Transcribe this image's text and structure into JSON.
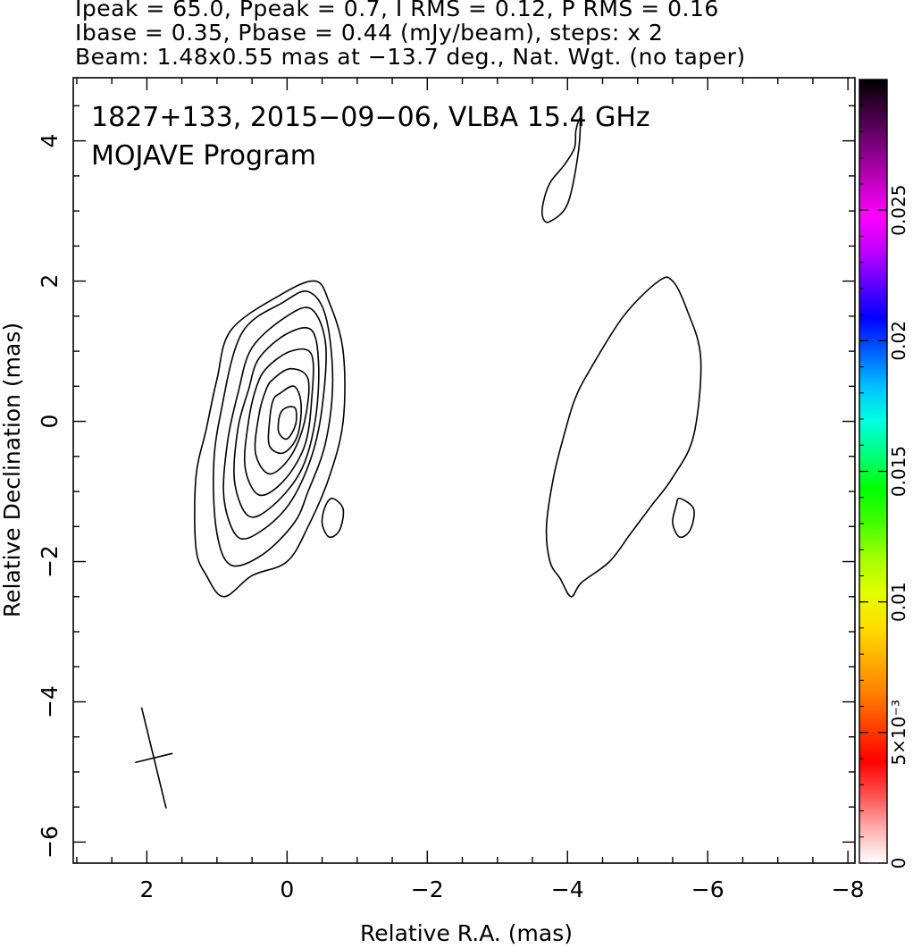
{
  "header": {
    "line1": "Ipeak = 65.0, Ppeak = 0.7, I RMS = 0.12, P RMS = 0.16",
    "line2": "Ibase = 0.35, Pbase = 0.44 (mJy/beam), steps: x 2",
    "line3": "Beam: 1.48x0.55 mas at −13.7 deg., Nat. Wgt. (no taper)"
  },
  "chart_data": {
    "type": "contour",
    "annotation": {
      "line1": "1827+133, 2015−09−06, VLBA 15.4 GHz",
      "line2": "MOJAVE Program"
    },
    "xlabel": "Relative R.A. (mas)",
    "ylabel": "Relative Declination (mas)",
    "xlim": [
      3.05,
      -8.1
    ],
    "ylim": [
      -6.3,
      4.9
    ],
    "x_ticks": [
      2,
      0,
      -2,
      -4,
      -6,
      -8
    ],
    "x_tick_labels": [
      "2",
      "0",
      "−2",
      "−4",
      "−6",
      "−8"
    ],
    "y_ticks": [
      -6,
      -4,
      -2,
      0,
      2,
      4
    ],
    "y_tick_labels": [
      "−6",
      "−4",
      "−2",
      "0",
      "2",
      "4"
    ],
    "colorbar": {
      "range": [
        0,
        0.03
      ],
      "ticks": [
        0,
        0.005,
        0.01,
        0.015,
        0.02,
        0.025
      ],
      "tick_labels": [
        "0",
        "5×10⁻³",
        "0.01",
        "0.015",
        "0.02",
        "0.025"
      ],
      "colors": [
        "#ffffff",
        "#ffb0b0",
        "#ff5050",
        "#ff0000",
        "#ff4000",
        "#ff8000",
        "#ffb000",
        "#ffe000",
        "#e0ff00",
        "#a0ff00",
        "#40ff00",
        "#00ff00",
        "#00ff80",
        "#00ffe0",
        "#00c0ff",
        "#0060ff",
        "#0000ff",
        "#6000ff",
        "#c000ff",
        "#ff00ff",
        "#c000c0",
        "#800080",
        "#400040",
        "#000000"
      ]
    },
    "beam": {
      "major_mas": 1.48,
      "minor_mas": 0.55,
      "pa_deg": -13.7,
      "center": [
        1.9,
        -4.8
      ]
    },
    "stokes_i_contours": {
      "peak_mJy_per_beam": 65.0,
      "base_mJy_per_beam": 0.35,
      "step_factor": 2,
      "core": [
        {
          "level": 1,
          "points": [
            [
              0.8,
              1.3
            ],
            [
              0.1,
              1.8
            ],
            [
              -0.4,
              2.0
            ],
            [
              -0.6,
              1.7
            ],
            [
              -0.8,
              1.0
            ],
            [
              -0.8,
              0.0
            ],
            [
              -0.6,
              -0.8
            ],
            [
              -0.3,
              -1.5
            ],
            [
              0.0,
              -2.0
            ],
            [
              0.5,
              -2.2
            ],
            [
              0.9,
              -2.5
            ],
            [
              1.15,
              -2.2
            ],
            [
              1.3,
              -1.8
            ],
            [
              1.3,
              -0.8
            ],
            [
              1.15,
              -0.1
            ],
            [
              1.0,
              0.6
            ]
          ]
        },
        {
          "level": 2,
          "points": [
            [
              0.65,
              1.25
            ],
            [
              0.05,
              1.7
            ],
            [
              -0.3,
              1.85
            ],
            [
              -0.55,
              1.5
            ],
            [
              -0.65,
              0.6
            ],
            [
              -0.55,
              -0.3
            ],
            [
              -0.3,
              -1.0
            ],
            [
              -0.1,
              -1.45
            ],
            [
              0.35,
              -1.9
            ],
            [
              0.8,
              -2.05
            ],
            [
              1.0,
              -1.6
            ],
            [
              1.05,
              -0.7
            ],
            [
              0.95,
              0.1
            ]
          ]
        },
        {
          "level": 3,
          "points": [
            [
              0.5,
              1.05
            ],
            [
              0.0,
              1.5
            ],
            [
              -0.35,
              1.6
            ],
            [
              -0.55,
              1.1
            ],
            [
              -0.5,
              0.2
            ],
            [
              -0.35,
              -0.5
            ],
            [
              -0.05,
              -1.15
            ],
            [
              0.35,
              -1.55
            ],
            [
              0.7,
              -1.65
            ],
            [
              0.9,
              -1.1
            ],
            [
              0.85,
              -0.3
            ],
            [
              0.7,
              0.4
            ]
          ]
        },
        {
          "level": 4,
          "points": [
            [
              0.4,
              0.9
            ],
            [
              0.0,
              1.25
            ],
            [
              -0.35,
              1.3
            ],
            [
              -0.45,
              0.8
            ],
            [
              -0.4,
              0.0
            ],
            [
              -0.2,
              -0.7
            ],
            [
              0.2,
              -1.2
            ],
            [
              0.55,
              -1.35
            ],
            [
              0.75,
              -0.85
            ],
            [
              0.7,
              -0.1
            ],
            [
              0.55,
              0.45
            ]
          ]
        },
        {
          "level": 5,
          "points": [
            [
              0.3,
              0.75
            ],
            [
              -0.05,
              1.0
            ],
            [
              -0.35,
              0.95
            ],
            [
              -0.35,
              0.3
            ],
            [
              -0.25,
              -0.35
            ],
            [
              0.05,
              -0.85
            ],
            [
              0.4,
              -1.05
            ],
            [
              0.6,
              -0.65
            ],
            [
              0.55,
              0.0
            ],
            [
              0.45,
              0.45
            ]
          ]
        },
        {
          "level": 6,
          "points": [
            [
              0.2,
              0.6
            ],
            [
              -0.05,
              0.75
            ],
            [
              -0.3,
              0.6
            ],
            [
              -0.25,
              0.0
            ],
            [
              -0.05,
              -0.5
            ],
            [
              0.25,
              -0.75
            ],
            [
              0.45,
              -0.45
            ],
            [
              0.4,
              0.1
            ],
            [
              0.3,
              0.45
            ]
          ]
        },
        {
          "level": 7,
          "points": [
            [
              0.1,
              0.4
            ],
            [
              -0.1,
              0.5
            ],
            [
              -0.2,
              0.25
            ],
            [
              -0.15,
              -0.2
            ],
            [
              0.05,
              -0.45
            ],
            [
              0.25,
              -0.35
            ],
            [
              0.25,
              0.0
            ],
            [
              0.2,
              0.3
            ]
          ]
        },
        {
          "level": 8,
          "points": [
            [
              0.0,
              0.2
            ],
            [
              -0.12,
              0.18
            ],
            [
              -0.12,
              -0.05
            ],
            [
              0.0,
              -0.25
            ],
            [
              0.12,
              -0.15
            ],
            [
              0.1,
              0.1
            ]
          ]
        }
      ],
      "core_blob": {
        "level": 1,
        "points": [
          [
            -0.65,
            -1.1
          ],
          [
            -0.8,
            -1.25
          ],
          [
            -0.75,
            -1.55
          ],
          [
            -0.6,
            -1.65
          ],
          [
            -0.5,
            -1.45
          ],
          [
            -0.55,
            -1.2
          ]
        ]
      }
    },
    "polarization_contours": {
      "base_mJy_per_beam": 0.44,
      "step_factor": 2,
      "main": {
        "level": 1,
        "points": [
          [
            -4.3,
            0.7
          ],
          [
            -4.8,
            1.5
          ],
          [
            -5.3,
            2.0
          ],
          [
            -5.5,
            2.0
          ],
          [
            -5.7,
            1.6
          ],
          [
            -5.9,
            0.9
          ],
          [
            -5.8,
            -0.2
          ],
          [
            -5.5,
            -0.8
          ],
          [
            -5.2,
            -1.2
          ],
          [
            -4.9,
            -1.6
          ],
          [
            -4.6,
            -2.0
          ],
          [
            -4.2,
            -2.3
          ],
          [
            -4.05,
            -2.5
          ],
          [
            -3.9,
            -2.25
          ],
          [
            -3.75,
            -2.0
          ],
          [
            -3.7,
            -1.5
          ],
          [
            -3.8,
            -0.8
          ],
          [
            -3.95,
            -0.2
          ],
          [
            -4.1,
            0.3
          ]
        ]
      },
      "blob": {
        "level": 1,
        "points": [
          [
            -5.6,
            -1.1
          ],
          [
            -5.8,
            -1.25
          ],
          [
            -5.75,
            -1.55
          ],
          [
            -5.6,
            -1.65
          ],
          [
            -5.5,
            -1.45
          ],
          [
            -5.55,
            -1.2
          ]
        ]
      },
      "north": {
        "level": 1,
        "points": [
          [
            -4.12,
            4.15
          ],
          [
            -4.18,
            4.3
          ],
          [
            -4.15,
            3.8
          ],
          [
            -4.0,
            3.1
          ],
          [
            -3.75,
            2.85
          ],
          [
            -3.65,
            2.9
          ],
          [
            -3.65,
            3.1
          ],
          [
            -3.75,
            3.4
          ],
          [
            -3.95,
            3.65
          ],
          [
            -4.1,
            3.9
          ]
        ]
      }
    }
  }
}
